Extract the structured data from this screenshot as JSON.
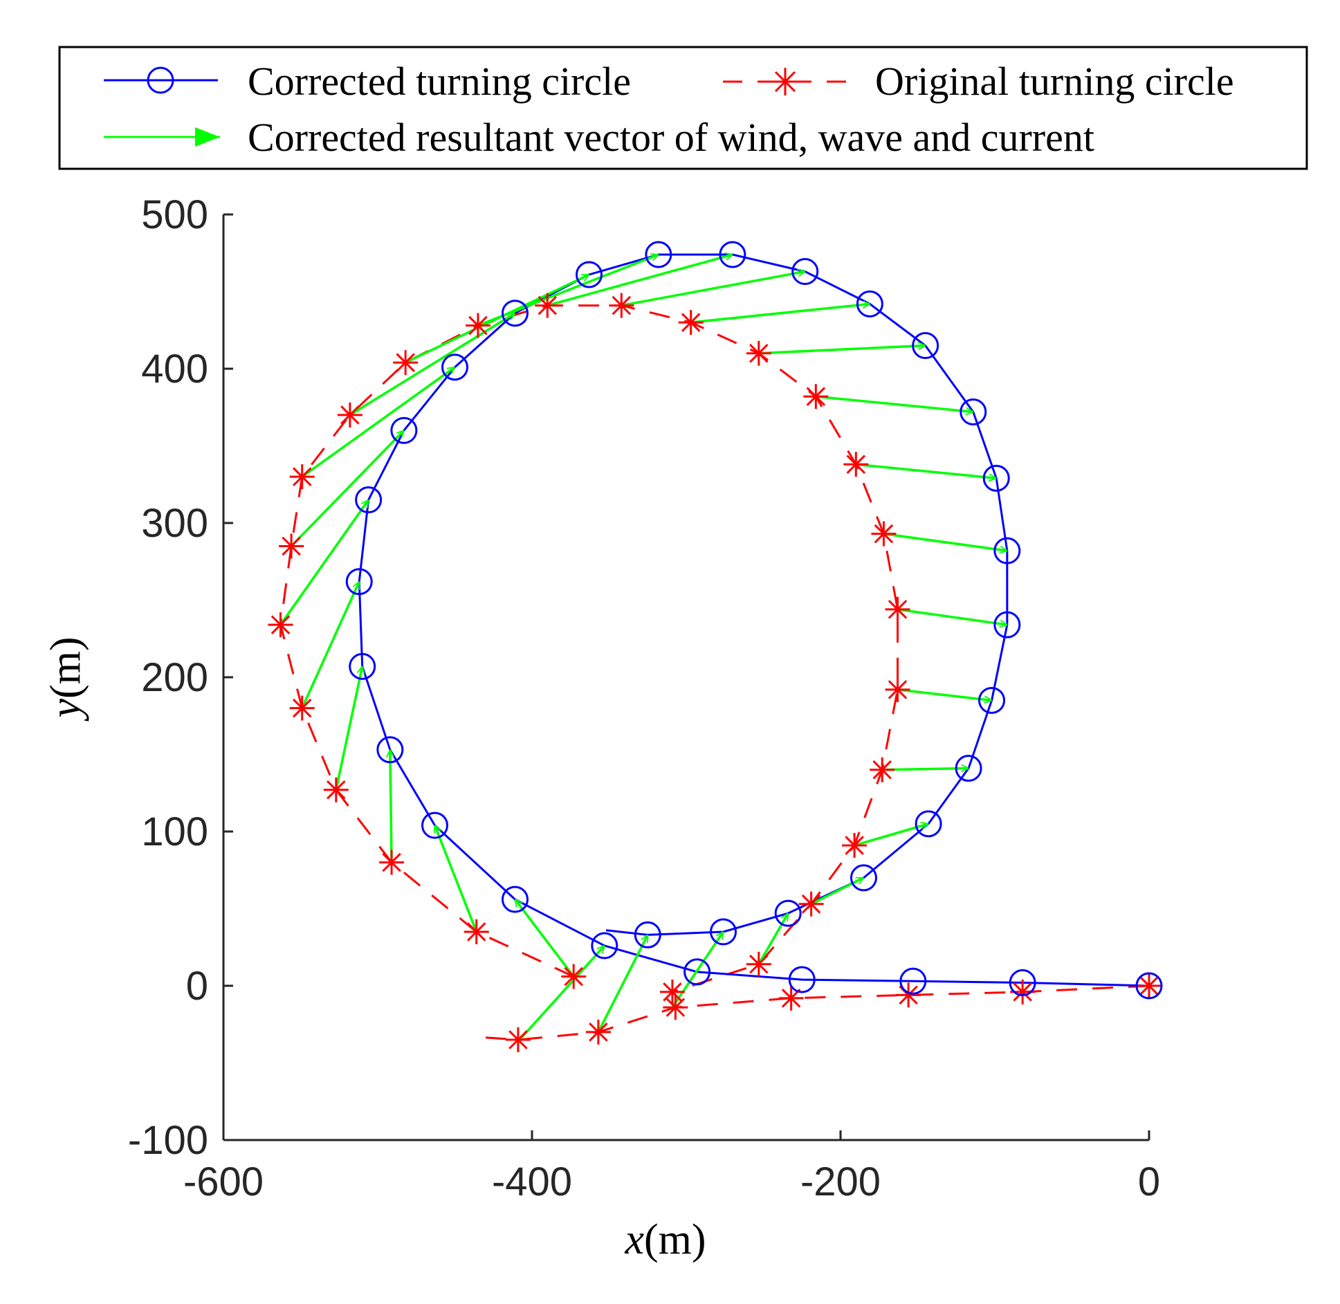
{
  "chart_data": {
    "type": "line",
    "title": "",
    "xlabel_var": "x",
    "xlabel_unit": "(m)",
    "ylabel_var": "y",
    "ylabel_unit": "(m)",
    "xlim": [
      -600,
      0
    ],
    "ylim": [
      -100,
      500
    ],
    "xticks": [
      -600,
      -400,
      -200,
      0
    ],
    "yticks": [
      -100,
      0,
      100,
      200,
      300,
      400,
      500
    ],
    "xtick_labels": [
      "-600",
      "-400",
      "-200",
      "0"
    ],
    "ytick_labels": [
      "-100",
      "0",
      "100",
      "200",
      "300",
      "400",
      "500"
    ],
    "legend_position": "top (outside plot)",
    "legend": {
      "corrected": "Corrected turning circle",
      "original": "Original turning circle",
      "vector": "Corrected resultant vector of wind, wave and current"
    },
    "colors": {
      "corrected": "#0000ff",
      "original": "#ff0000",
      "vector": "#00ff00",
      "axis": "#262626"
    },
    "series": [
      {
        "name": "Corrected turning circle",
        "marker": "circle",
        "line": "solid",
        "points": [
          [
            0,
            0
          ],
          [
            -82,
            2
          ],
          [
            -153,
            3
          ],
          [
            -225,
            4
          ],
          [
            -293,
            9
          ],
          [
            -353,
            26
          ],
          [
            -411,
            56
          ],
          [
            -463,
            104
          ],
          [
            -492,
            153
          ],
          [
            -510,
            207
          ],
          [
            -512,
            262
          ],
          [
            -506,
            315
          ],
          [
            -483,
            360
          ],
          [
            -450,
            401
          ],
          [
            -411,
            436
          ],
          [
            -363,
            461
          ],
          [
            -318,
            474
          ],
          [
            -270,
            474
          ],
          [
            -223,
            463
          ],
          [
            -181,
            442
          ],
          [
            -145,
            415
          ],
          [
            -114,
            372
          ],
          [
            -99,
            329
          ],
          [
            -92,
            282
          ],
          [
            -92,
            234
          ],
          [
            -102,
            185
          ],
          [
            -117,
            141
          ],
          [
            -143,
            105
          ],
          [
            -185,
            70
          ],
          [
            -234,
            47
          ],
          [
            -276,
            35
          ],
          [
            -325,
            33
          ],
          [
            -352,
            36
          ]
        ]
      },
      {
        "name": "Original turning circle",
        "marker": "asterisk",
        "line": "dashed",
        "points": [
          [
            0,
            0
          ],
          [
            -82,
            -4
          ],
          [
            -156,
            -6
          ],
          [
            -232,
            -8
          ],
          [
            -307,
            -14
          ],
          [
            -357,
            -30
          ],
          [
            -409,
            -35
          ],
          [
            -439,
            -33
          ]
        ],
        "points_upper": [
          [
            -373,
            6
          ],
          [
            -436,
            35
          ],
          [
            -491,
            80
          ],
          [
            -527,
            127
          ],
          [
            -549,
            180
          ],
          [
            -563,
            234
          ],
          [
            -556,
            285
          ],
          [
            -549,
            330
          ],
          [
            -518,
            370
          ],
          [
            -482,
            404
          ],
          [
            -435,
            428
          ],
          [
            -390,
            441
          ],
          [
            -342,
            441
          ],
          [
            -297,
            430
          ],
          [
            -253,
            410
          ],
          [
            -216,
            382
          ],
          [
            -190,
            338
          ],
          [
            -172,
            293
          ],
          [
            -163,
            244
          ],
          [
            -163,
            192
          ],
          [
            -173,
            140
          ],
          [
            -191,
            91
          ],
          [
            -219,
            53
          ],
          [
            -253,
            14
          ],
          [
            -309,
            -4
          ]
        ]
      },
      {
        "name": "Corrected resultant vector of wind, wave and current",
        "marker": "arrow",
        "line": "solid",
        "vectors": [
          [
            -408,
            -35,
            -353,
            26
          ],
          [
            -357,
            -30,
            -325,
            33
          ],
          [
            -309,
            -14,
            -276,
            35
          ],
          [
            -253,
            14,
            -234,
            47
          ],
          [
            -219,
            53,
            -185,
            70
          ],
          [
            -191,
            91,
            -143,
            105
          ],
          [
            -173,
            140,
            -117,
            141
          ],
          [
            -163,
            192,
            -102,
            185
          ],
          [
            -163,
            244,
            -92,
            234
          ],
          [
            -172,
            293,
            -92,
            282
          ],
          [
            -190,
            338,
            -99,
            329
          ],
          [
            -216,
            382,
            -114,
            372
          ],
          [
            -253,
            410,
            -145,
            415
          ],
          [
            -297,
            430,
            -181,
            442
          ],
          [
            -342,
            441,
            -223,
            463
          ],
          [
            -390,
            441,
            -270,
            474
          ],
          [
            -435,
            428,
            -318,
            474
          ],
          [
            -482,
            404,
            -363,
            461
          ],
          [
            -518,
            370,
            -411,
            436
          ],
          [
            -549,
            330,
            -450,
            401
          ],
          [
            -556,
            285,
            -483,
            360
          ],
          [
            -563,
            234,
            -506,
            315
          ],
          [
            -549,
            180,
            -512,
            262
          ],
          [
            -527,
            127,
            -510,
            207
          ],
          [
            -491,
            80,
            -492,
            153
          ],
          [
            -436,
            35,
            -463,
            104
          ],
          [
            -373,
            6,
            -411,
            56
          ]
        ]
      }
    ]
  }
}
